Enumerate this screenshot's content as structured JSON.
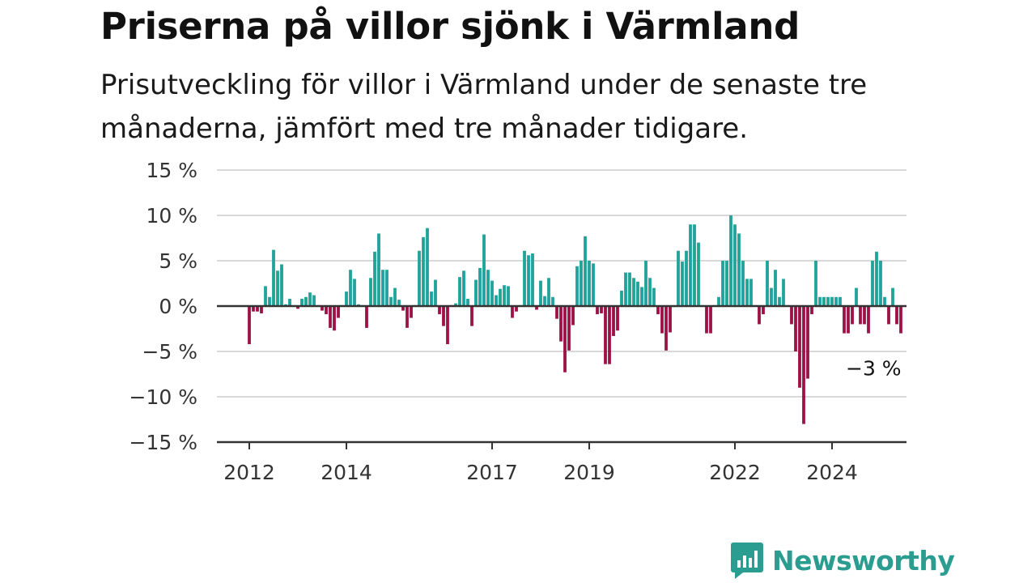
{
  "title": "Priserna på villor sjönk i Värmland",
  "subtitle": "Prisutveckling för villor i Värmland under de senaste tre månaderna, jämfört med tre månader tidigare.",
  "brand": {
    "name": "Newsworthy",
    "color": "#2a9d90"
  },
  "colors": {
    "positive": "#1fa39a",
    "negative": "#9c1246",
    "grid": "#d9d9d9",
    "axis": "#333333"
  },
  "chart_data": {
    "type": "bar",
    "ylim": [
      -15,
      15
    ],
    "yticks": [
      15,
      10,
      5,
      0,
      -5,
      -10,
      -15
    ],
    "ytick_labels": [
      "15 %",
      "10 %",
      "5 %",
      "0 %",
      "−5 %",
      "−10 %",
      "−15 %"
    ],
    "x_start": "2012-01",
    "x_end": "2025-04",
    "xtick_labels": [
      "2012",
      "2014",
      "2017",
      "2019",
      "2022",
      "2024"
    ],
    "last_value_label": "−3 %",
    "values": [
      -4.2,
      -0.6,
      -0.6,
      -0.8,
      2.2,
      1.0,
      6.2,
      3.9,
      4.6,
      0.2,
      0.8,
      0.1,
      -0.3,
      0.8,
      1.0,
      1.5,
      1.2,
      0.1,
      -0.5,
      -0.9,
      -2.4,
      -2.7,
      -1.3,
      0.1,
      1.6,
      4.0,
      3.0,
      0.2,
      0.1,
      -2.4,
      3.1,
      6.0,
      8.0,
      4.0,
      4.0,
      1.0,
      2.0,
      0.7,
      -0.5,
      -2.4,
      -1.3,
      0.1,
      6.1,
      7.6,
      8.6,
      1.6,
      2.9,
      -0.9,
      -2.2,
      -4.2,
      0.1,
      0.3,
      3.2,
      3.9,
      0.8,
      -2.2,
      2.9,
      4.2,
      7.9,
      4.0,
      2.8,
      1.2,
      1.9,
      2.3,
      2.2,
      -1.3,
      -0.6,
      0.1,
      6.1,
      5.6,
      5.8,
      -0.4,
      2.8,
      1.1,
      3.1,
      1.0,
      -1.4,
      -3.9,
      -7.3,
      -4.9,
      -2.1,
      4.4,
      5.0,
      7.7,
      5.0,
      4.7,
      -0.9,
      -0.8,
      -6.4,
      -6.4,
      -3.3,
      -2.7,
      1.7,
      3.7,
      3.7,
      3.1,
      2.7,
      2.1,
      5.0,
      3.1,
      2.0,
      -0.9,
      -3.0,
      -4.9,
      -2.9,
      -0.1,
      6.1,
      4.9,
      6.1,
      9.0,
      9.0,
      7.0,
      0.1,
      -3.0,
      -3.0,
      0.1,
      1.0,
      5.0,
      5.0,
      10.0,
      9.0,
      8.0,
      5.0,
      3.0,
      3.0,
      0.1,
      -2.0,
      -0.9,
      5.0,
      2.0,
      4.0,
      1.0,
      3.0,
      0.1,
      -2.0,
      -5.0,
      -9.0,
      -13.0,
      -8.0,
      -0.9,
      5.0,
      1.0,
      1.0,
      1.0,
      1.0,
      1.0,
      1.0,
      -3.0,
      -3.0,
      -2.0,
      2.0,
      -2.0,
      -2.0,
      -3.0,
      5.0,
      6.0,
      5.0,
      1.0,
      -2.0,
      2.0,
      -2.0,
      -3.0
    ]
  }
}
